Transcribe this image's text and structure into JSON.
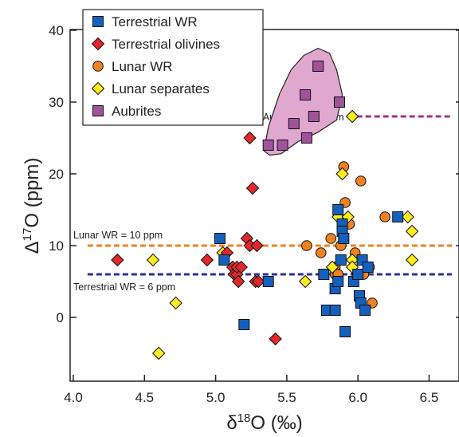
{
  "chart_data": {
    "type": "scatter",
    "xlabel": {
      "prefix": "δ",
      "sup": "18",
      "rest": "O (‰)"
    },
    "ylabel": {
      "prefix": "Δ",
      "sup": "17",
      "rest": "O (ppm)"
    },
    "xlim": [
      4.0,
      6.7
    ],
    "ylim": [
      -12,
      44
    ],
    "xticks": [
      "4.0",
      "4.5",
      "5.0",
      "5.5",
      "6.0",
      "6.5"
    ],
    "yticks": [
      "0",
      "10",
      "20",
      "30",
      "40"
    ],
    "grid": false,
    "legend_position": "top-left",
    "reference_lines": [
      {
        "label": "Aubrites = 28 ppm",
        "y": 28,
        "x_start": 5.93,
        "x_end": 6.66,
        "color": "#a0367e"
      },
      {
        "label": "Lunar WR = 10 ppm",
        "y": 10,
        "x_start": 4.1,
        "x_end": 6.66,
        "color": "#f0801e"
      },
      {
        "label": "Terrestrial WR = 6 ppm",
        "y": 6,
        "x_start": 4.1,
        "x_end": 6.66,
        "color": "#2f2f93"
      }
    ],
    "series": [
      {
        "name": "Terrestrial WR",
        "marker": "square",
        "color": "#1560bd",
        "points": [
          [
            5.03,
            11
          ],
          [
            5.06,
            8
          ],
          [
            5.2,
            -1
          ],
          [
            5.37,
            5
          ],
          [
            5.76,
            6
          ],
          [
            5.78,
            1
          ],
          [
            5.84,
            4
          ],
          [
            5.84,
            1
          ],
          [
            5.86,
            15
          ],
          [
            5.88,
            8
          ],
          [
            5.86,
            5
          ],
          [
            5.89,
            13
          ],
          [
            5.89,
            12
          ],
          [
            5.9,
            11
          ],
          [
            5.91,
            -2
          ],
          [
            5.97,
            5
          ],
          [
            6.0,
            6
          ],
          [
            6.01,
            3
          ],
          [
            6.02,
            2
          ],
          [
            6.03,
            8
          ],
          [
            6.05,
            1
          ],
          [
            6.07,
            7
          ],
          [
            6.28,
            14
          ]
        ]
      },
      {
        "name": "Terrestrial olivines",
        "marker": "diamond",
        "color": "#e3262c",
        "points": [
          [
            4.31,
            8
          ],
          [
            4.94,
            8
          ],
          [
            5.08,
            9
          ],
          [
            5.12,
            7
          ],
          [
            5.13,
            6
          ],
          [
            5.15,
            6
          ],
          [
            5.16,
            5
          ],
          [
            5.15,
            7
          ],
          [
            5.18,
            7
          ],
          [
            5.22,
            11
          ],
          [
            5.24,
            10
          ],
          [
            5.24,
            25
          ],
          [
            5.26,
            18
          ],
          [
            5.29,
            10
          ],
          [
            5.28,
            5
          ],
          [
            5.3,
            5
          ],
          [
            5.42,
            -3
          ]
        ]
      },
      {
        "name": "Lunar WR",
        "marker": "circle",
        "color": "#f08122",
        "points": [
          [
            5.64,
            10
          ],
          [
            5.74,
            9
          ],
          [
            5.81,
            11
          ],
          [
            5.84,
            7
          ],
          [
            5.84,
            6
          ],
          [
            5.86,
            6
          ],
          [
            5.88,
            10
          ],
          [
            5.9,
            21
          ],
          [
            5.91,
            16
          ],
          [
            5.94,
            13
          ],
          [
            5.98,
            9
          ],
          [
            6.01,
            6
          ],
          [
            6.02,
            19
          ],
          [
            6.04,
            6
          ],
          [
            6.08,
            7
          ],
          [
            6.1,
            2
          ],
          [
            6.19,
            14
          ]
        ]
      },
      {
        "name": "Lunar separates",
        "marker": "diamond",
        "color": "#fcec1f",
        "points": [
          [
            4.56,
            8
          ],
          [
            4.6,
            -5
          ],
          [
            4.72,
            2
          ],
          [
            5.05,
            9
          ],
          [
            5.63,
            5
          ],
          [
            5.82,
            7
          ],
          [
            5.86,
            14
          ],
          [
            5.89,
            20
          ],
          [
            5.93,
            14
          ],
          [
            5.96,
            8
          ],
          [
            5.96,
            7
          ],
          [
            5.96,
            28
          ],
          [
            6.35,
            14
          ],
          [
            6.38,
            12
          ],
          [
            6.38,
            8
          ]
        ]
      },
      {
        "name": "Aubrites",
        "marker": "square",
        "color": "#a0539a",
        "points": [
          [
            5.37,
            24
          ],
          [
            5.47,
            24
          ],
          [
            5.55,
            27
          ],
          [
            5.63,
            31
          ],
          [
            5.64,
            25
          ],
          [
            5.69,
            28
          ],
          [
            5.72,
            35
          ],
          [
            5.87,
            30
          ]
        ]
      }
    ]
  }
}
